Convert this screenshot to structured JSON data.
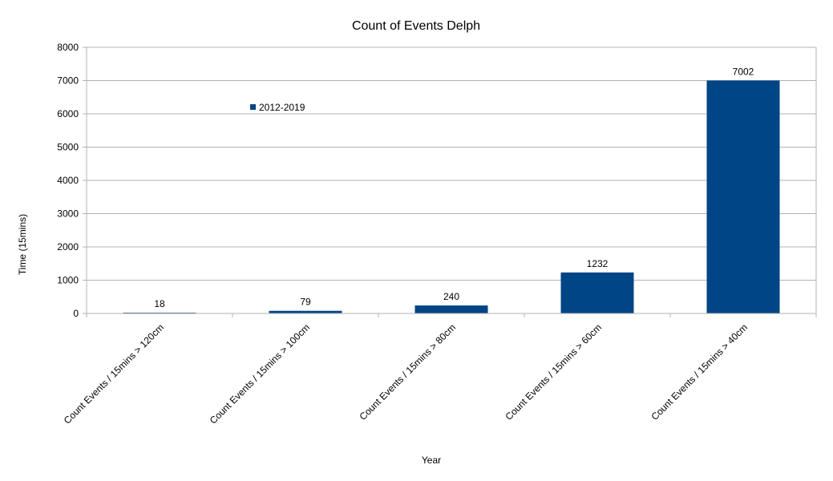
{
  "chart_data": {
    "type": "bar",
    "title": "Count of Events Delph",
    "xlabel": "Year",
    "ylabel": "Time (15mins)",
    "categories": [
      "Count Events / 15mins > 120cm",
      "Count Events / 15mins > 100cm",
      "Count Events / 15mins > 80cm",
      "Count Events / 15mins > 60cm",
      "Count Events / 15mins > 40cm"
    ],
    "series": [
      {
        "name": "2012-2019",
        "values": [
          18,
          79,
          240,
          1232,
          7002
        ],
        "color": "#004586"
      }
    ],
    "ylim": [
      0,
      8000
    ],
    "yticks": [
      0,
      1000,
      2000,
      3000,
      4000,
      5000,
      6000,
      7000,
      8000
    ],
    "grid": true,
    "legend_position": "top-left inside plot"
  }
}
